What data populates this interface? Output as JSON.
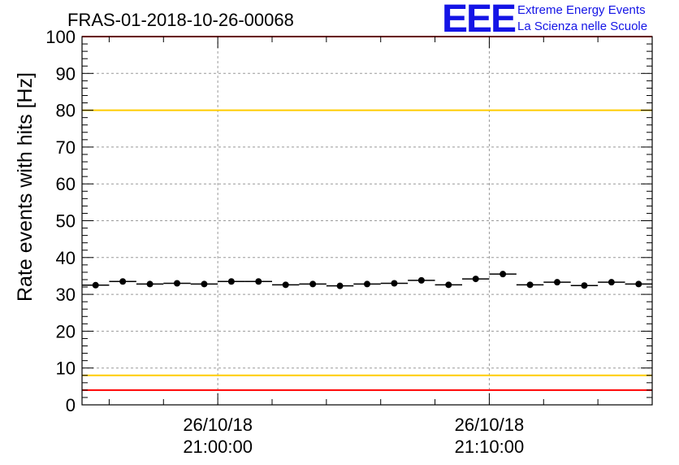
{
  "chart_data": {
    "type": "scatter",
    "title": "FRAS-01-2018-10-26-00068",
    "ylabel": "Rate events with hits [Hz]",
    "xlabel": "",
    "ylim": [
      0,
      100
    ],
    "yticks": [
      "0",
      "10",
      "20",
      "30",
      "40",
      "50",
      "60",
      "70",
      "80",
      "90",
      "100"
    ],
    "x_tick_labels": [
      {
        "date": "26/10/18",
        "time": "21:00:00"
      },
      {
        "date": "26/10/18",
        "time": "21:10:00"
      }
    ],
    "x_unit": "minutes after 20:55:00",
    "xlim": [
      0,
      21
    ],
    "x_ticks_minutes": [
      5,
      15
    ],
    "grid": true,
    "bin_width_minutes": 1,
    "series": [
      {
        "name": "rate",
        "x": [
          0.5,
          1.5,
          2.5,
          3.5,
          4.5,
          5.5,
          6.5,
          7.5,
          8.5,
          9.5,
          10.5,
          11.5,
          12.5,
          13.5,
          14.5,
          15.5,
          16.5,
          17.5,
          18.5,
          19.5,
          20.5
        ],
        "values": [
          32.5,
          33.5,
          32.8,
          33.0,
          32.8,
          33.5,
          33.5,
          32.6,
          32.8,
          32.3,
          32.8,
          33.0,
          33.8,
          32.6,
          34.2,
          35.5,
          32.6,
          33.3,
          32.4,
          33.3,
          32.8
        ],
        "color": "#000000"
      }
    ],
    "reference_lines": [
      {
        "value": 80,
        "color": "#ffcc00"
      },
      {
        "value": 8,
        "color": "#ffcc00"
      },
      {
        "value": 100,
        "color": "#ff0000"
      },
      {
        "value": 4,
        "color": "#ff0000"
      }
    ]
  },
  "logo": {
    "mark": "EEE",
    "line1": "Extreme Energy Events",
    "line2": "La Scienza nelle Scuole",
    "color": "#1414e6"
  }
}
